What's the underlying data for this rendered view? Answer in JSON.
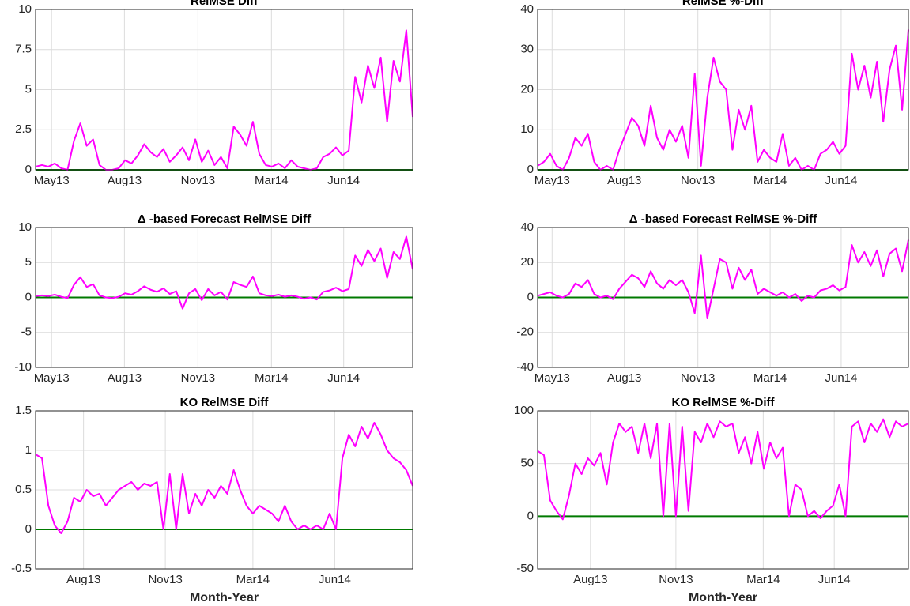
{
  "chart_data": [
    {
      "type": "line",
      "title": "RelMSE Diff",
      "grid": true,
      "xlim": [
        0,
        59
      ],
      "xticks": [
        {
          "value": 2.5,
          "label": "May13"
        },
        {
          "value": 13.9,
          "label": "Aug13"
        },
        {
          "value": 25.4,
          "label": "Nov13"
        },
        {
          "value": 36.9,
          "label": "Mar14"
        },
        {
          "value": 48.2,
          "label": "Jun14"
        }
      ],
      "ylim": [
        0,
        10
      ],
      "yticks": [
        0,
        2.5,
        5,
        7.5,
        10
      ],
      "reference_line": {
        "value": 0,
        "color": "#007a00"
      },
      "series": [
        {
          "color": "#ff00ff",
          "values": [
            0.2,
            0.3,
            0.2,
            0.4,
            0.1,
            0,
            1.8,
            2.9,
            1.5,
            1.9,
            0.3,
            0,
            0,
            0.1,
            0.6,
            0.4,
            0.9,
            1.6,
            1.1,
            0.8,
            1.3,
            0.5,
            0.9,
            1.4,
            0.6,
            1.9,
            0.5,
            1.2,
            0.3,
            0.8,
            0.1,
            2.7,
            2.2,
            1.5,
            3.0,
            1.0,
            0.3,
            0.2,
            0.4,
            0.1,
            0.6,
            0.2,
            0.1,
            0,
            0.1,
            0.8,
            1.0,
            1.4,
            0.9,
            1.2,
            5.8,
            4.2,
            6.5,
            5.1,
            7.0,
            3.0,
            6.8,
            5.5,
            8.7,
            3.3
          ]
        }
      ]
    },
    {
      "type": "line",
      "title": "RelMSE %-Diff",
      "grid": true,
      "xlim": [
        0,
        59
      ],
      "xticks": [
        {
          "value": 2.3,
          "label": "May13"
        },
        {
          "value": 13.8,
          "label": "Aug13"
        },
        {
          "value": 25.5,
          "label": "Nov13"
        },
        {
          "value": 37,
          "label": "Mar14"
        },
        {
          "value": 48.3,
          "label": "Jun14"
        }
      ],
      "ylim": [
        0,
        40
      ],
      "yticks": [
        0,
        10,
        20,
        30,
        40
      ],
      "reference_line": {
        "value": 0,
        "color": "#007a00"
      },
      "series": [
        {
          "color": "#ff00ff",
          "values": [
            1,
            2,
            4,
            1,
            0,
            3,
            8,
            6,
            9,
            2,
            0,
            1,
            0,
            5,
            9,
            13,
            11,
            6,
            16,
            8,
            5,
            10,
            7,
            11,
            3,
            24,
            1,
            18,
            28,
            22,
            20,
            5,
            15,
            10,
            16,
            2,
            5,
            3,
            2,
            9,
            1,
            3,
            0,
            1,
            0,
            4,
            5,
            7,
            4,
            6,
            29,
            20,
            26,
            18,
            27,
            12,
            25,
            31,
            15,
            35
          ]
        }
      ]
    },
    {
      "type": "line",
      "title": "Δ -based Forecast RelMSE Diff",
      "grid": true,
      "xlim": [
        0,
        59
      ],
      "xticks": [
        {
          "value": 2.5,
          "label": "May13"
        },
        {
          "value": 13.9,
          "label": "Aug13"
        },
        {
          "value": 25.4,
          "label": "Nov13"
        },
        {
          "value": 36.9,
          "label": "Mar14"
        },
        {
          "value": 48.2,
          "label": "Jun14"
        }
      ],
      "ylim": [
        -10,
        10
      ],
      "yticks": [
        -10,
        -5,
        0,
        5,
        10
      ],
      "reference_line": {
        "value": 0,
        "color": "#007a00"
      },
      "series": [
        {
          "color": "#ff00ff",
          "values": [
            0.2,
            0.3,
            0.2,
            0.4,
            0.1,
            -0.1,
            1.8,
            2.9,
            1.5,
            1.9,
            0.3,
            0,
            -0.1,
            0.1,
            0.6,
            0.4,
            0.9,
            1.6,
            1.1,
            0.8,
            1.3,
            0.5,
            0.9,
            -1.6,
            0.6,
            1.2,
            -0.4,
            1.2,
            0.3,
            0.8,
            -0.3,
            2.2,
            1.8,
            1.5,
            3.0,
            0.6,
            0.3,
            0.2,
            0.4,
            0.1,
            0.3,
            0.1,
            -0.2,
            0,
            -0.3,
            0.8,
            1.0,
            1.4,
            0.9,
            1.2,
            6.0,
            4.5,
            6.8,
            5.2,
            7.0,
            2.8,
            6.5,
            5.5,
            8.7,
            4.0
          ]
        }
      ]
    },
    {
      "type": "line",
      "title": "Δ -based Forecast RelMSE %-Diff",
      "grid": true,
      "xlim": [
        0,
        59
      ],
      "xticks": [
        {
          "value": 2.3,
          "label": "May13"
        },
        {
          "value": 13.8,
          "label": "Aug13"
        },
        {
          "value": 25.5,
          "label": "Nov13"
        },
        {
          "value": 37,
          "label": "Mar14"
        },
        {
          "value": 48.3,
          "label": "Jun14"
        }
      ],
      "ylim": [
        -40,
        40
      ],
      "yticks": [
        -40,
        -20,
        0,
        20,
        40
      ],
      "reference_line": {
        "value": 0,
        "color": "#007a00"
      },
      "series": [
        {
          "color": "#ff00ff",
          "values": [
            1,
            2,
            3,
            1,
            0,
            2,
            8,
            6,
            10,
            2,
            0,
            1,
            -1,
            5,
            9,
            13,
            11,
            6,
            15,
            8,
            5,
            10,
            7,
            10,
            3,
            -9,
            24,
            -12,
            5,
            22,
            20,
            5,
            17,
            10,
            16,
            2,
            5,
            3,
            1,
            3,
            0,
            2,
            -2,
            1,
            0,
            4,
            5,
            7,
            4,
            6,
            30,
            20,
            26,
            18,
            27,
            12,
            25,
            28,
            15,
            33
          ]
        }
      ]
    },
    {
      "type": "line",
      "title": "KO RelMSE Diff",
      "xlabel": "Month-Year",
      "grid": true,
      "xlim": [
        0,
        59
      ],
      "xticks": [
        {
          "value": 7.5,
          "label": "Aug13"
        },
        {
          "value": 20.3,
          "label": "Nov13"
        },
        {
          "value": 34,
          "label": "Mar14"
        },
        {
          "value": 46.8,
          "label": "Jun14"
        }
      ],
      "ylim": [
        -0.5,
        1.5
      ],
      "yticks": [
        -0.5,
        0,
        0.5,
        1,
        1.5
      ],
      "reference_line": {
        "value": 0,
        "color": "#007a00"
      },
      "series": [
        {
          "color": "#ff00ff",
          "values": [
            0.95,
            0.9,
            0.3,
            0.05,
            -0.05,
            0.1,
            0.4,
            0.35,
            0.5,
            0.42,
            0.45,
            0.3,
            0.4,
            0.5,
            0.55,
            0.6,
            0.5,
            0.58,
            0.55,
            0.6,
            0.0,
            0.7,
            0.0,
            0.7,
            0.2,
            0.45,
            0.3,
            0.5,
            0.4,
            0.55,
            0.45,
            0.75,
            0.5,
            0.3,
            0.2,
            0.3,
            0.25,
            0.2,
            0.1,
            0.3,
            0.1,
            0.0,
            0.05,
            0.0,
            0.05,
            0.0,
            0.2,
            0.0,
            0.9,
            1.2,
            1.05,
            1.3,
            1.15,
            1.35,
            1.2,
            1.0,
            0.9,
            0.85,
            0.75,
            0.55
          ]
        }
      ]
    },
    {
      "type": "line",
      "title": "KO RelMSE %-Diff",
      "xlabel": "Month-Year",
      "grid": true,
      "xlim": [
        0,
        59
      ],
      "xticks": [
        {
          "value": 8.4,
          "label": "Aug13"
        },
        {
          "value": 22,
          "label": "Nov13"
        },
        {
          "value": 35.9,
          "label": "Mar14"
        },
        {
          "value": 47.2,
          "label": "Jun14"
        }
      ],
      "ylim": [
        -50,
        100
      ],
      "yticks": [
        -50,
        0,
        50,
        100
      ],
      "reference_line": {
        "value": 0,
        "color": "#007a00"
      },
      "series": [
        {
          "color": "#ff00ff",
          "values": [
            62,
            58,
            15,
            5,
            -3,
            20,
            50,
            40,
            55,
            48,
            60,
            30,
            70,
            88,
            80,
            85,
            60,
            88,
            55,
            88,
            0,
            88,
            0,
            85,
            5,
            80,
            70,
            88,
            75,
            90,
            85,
            88,
            60,
            75,
            50,
            80,
            45,
            70,
            55,
            65,
            0,
            30,
            25,
            0,
            5,
            -2,
            5,
            10,
            30,
            0,
            85,
            90,
            70,
            88,
            80,
            92,
            75,
            90,
            85,
            88
          ]
        }
      ]
    }
  ]
}
